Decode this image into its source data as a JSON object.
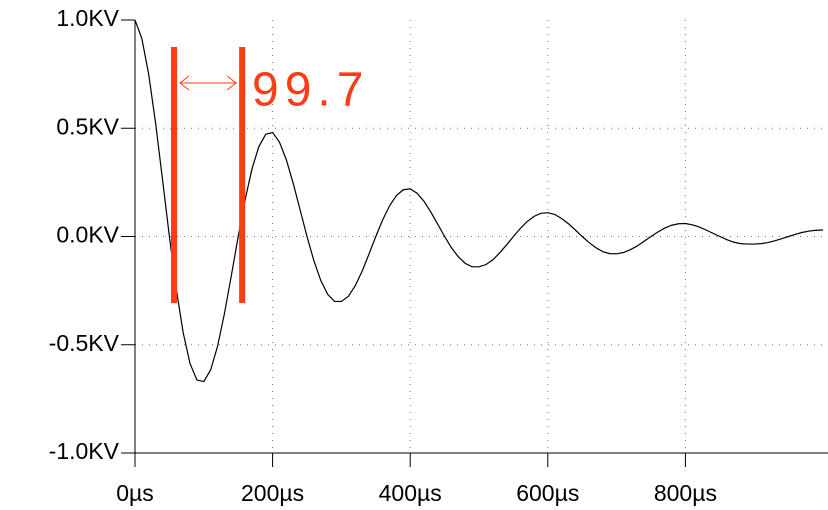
{
  "chart_data": {
    "type": "line",
    "x": [
      0,
      10,
      20,
      30,
      40,
      50,
      60,
      70,
      80,
      90,
      100,
      110,
      120,
      130,
      140,
      150,
      160,
      170,
      180,
      190,
      200,
      210,
      220,
      230,
      240,
      250,
      260,
      270,
      280,
      290,
      300,
      310,
      320,
      330,
      340,
      350,
      360,
      370,
      380,
      390,
      400,
      410,
      420,
      430,
      440,
      450,
      460,
      470,
      480,
      490,
      500,
      510,
      520,
      530,
      540,
      550,
      560,
      570,
      580,
      590,
      600,
      610,
      620,
      630,
      640,
      650,
      660,
      670,
      680,
      690,
      700,
      710,
      720,
      730,
      740,
      750,
      760,
      770,
      780,
      790,
      800,
      810,
      820,
      830,
      840,
      850,
      860,
      870,
      880,
      890,
      900,
      910,
      920,
      930,
      940,
      950,
      960,
      970,
      980,
      990,
      1000
    ],
    "series": [
      {
        "color": "#000000",
        "values": [
          1,
          0.914,
          0.747,
          0.522,
          0.263,
          0,
          -0.243,
          -0.444,
          -0.587,
          -0.663,
          -0.67,
          -0.616,
          -0.507,
          -0.356,
          -0.181,
          0,
          0.169,
          0.312,
          0.415,
          0.472,
          0.48,
          0.436,
          0.354,
          0.245,
          0.123,
          0,
          -0.112,
          -0.203,
          -0.267,
          -0.3,
          -0.3,
          -0.277,
          -0.228,
          -0.161,
          -0.082,
          0,
          0.077,
          0.142,
          0.189,
          0.216,
          0.22,
          0.2,
          0.163,
          0.113,
          0.057,
          0,
          -0.052,
          -0.094,
          -0.124,
          -0.14,
          -0.14,
          -0.13,
          -0.108,
          -0.076,
          -0.039,
          0,
          0.037,
          0.069,
          0.093,
          0.107,
          0.11,
          0.102,
          0.083,
          0.059,
          0.03,
          0,
          -0.028,
          -0.052,
          -0.07,
          -0.079,
          -0.08,
          -0.074,
          -0.061,
          -0.044,
          -0.022,
          0,
          0.021,
          0.039,
          0.052,
          0.059,
          0.06,
          0.054,
          0.044,
          0.03,
          0.015,
          0,
          -0.014,
          -0.026,
          -0.033,
          -0.035,
          -0.035,
          -0.033,
          -0.028,
          -0.02,
          -0.01,
          0,
          0.01,
          0.019,
          0.025,
          0.029,
          0.03
        ]
      }
    ],
    "xlim": [
      0,
      1000
    ],
    "ylim": [
      -1,
      1
    ],
    "xticks": [
      {
        "value": 0,
        "label": "0µs"
      },
      {
        "value": 200,
        "label": "200µs"
      },
      {
        "value": 400,
        "label": "400µs"
      },
      {
        "value": 600,
        "label": "600µs"
      },
      {
        "value": 800,
        "label": "800µs"
      }
    ],
    "yticks": [
      {
        "value": -1,
        "label": "-1.0KV"
      },
      {
        "value": -0.5,
        "label": "-0.5KV"
      },
      {
        "value": 0,
        "label": "0.0KV"
      },
      {
        "value": 0.5,
        "label": "0.5KV"
      },
      {
        "value": 1,
        "label": "1.0KV"
      }
    ],
    "grid": true,
    "cursors": {
      "color": "#ff3c14",
      "x": [
        56.7,
        155.7
      ],
      "label": "99.7"
    }
  }
}
